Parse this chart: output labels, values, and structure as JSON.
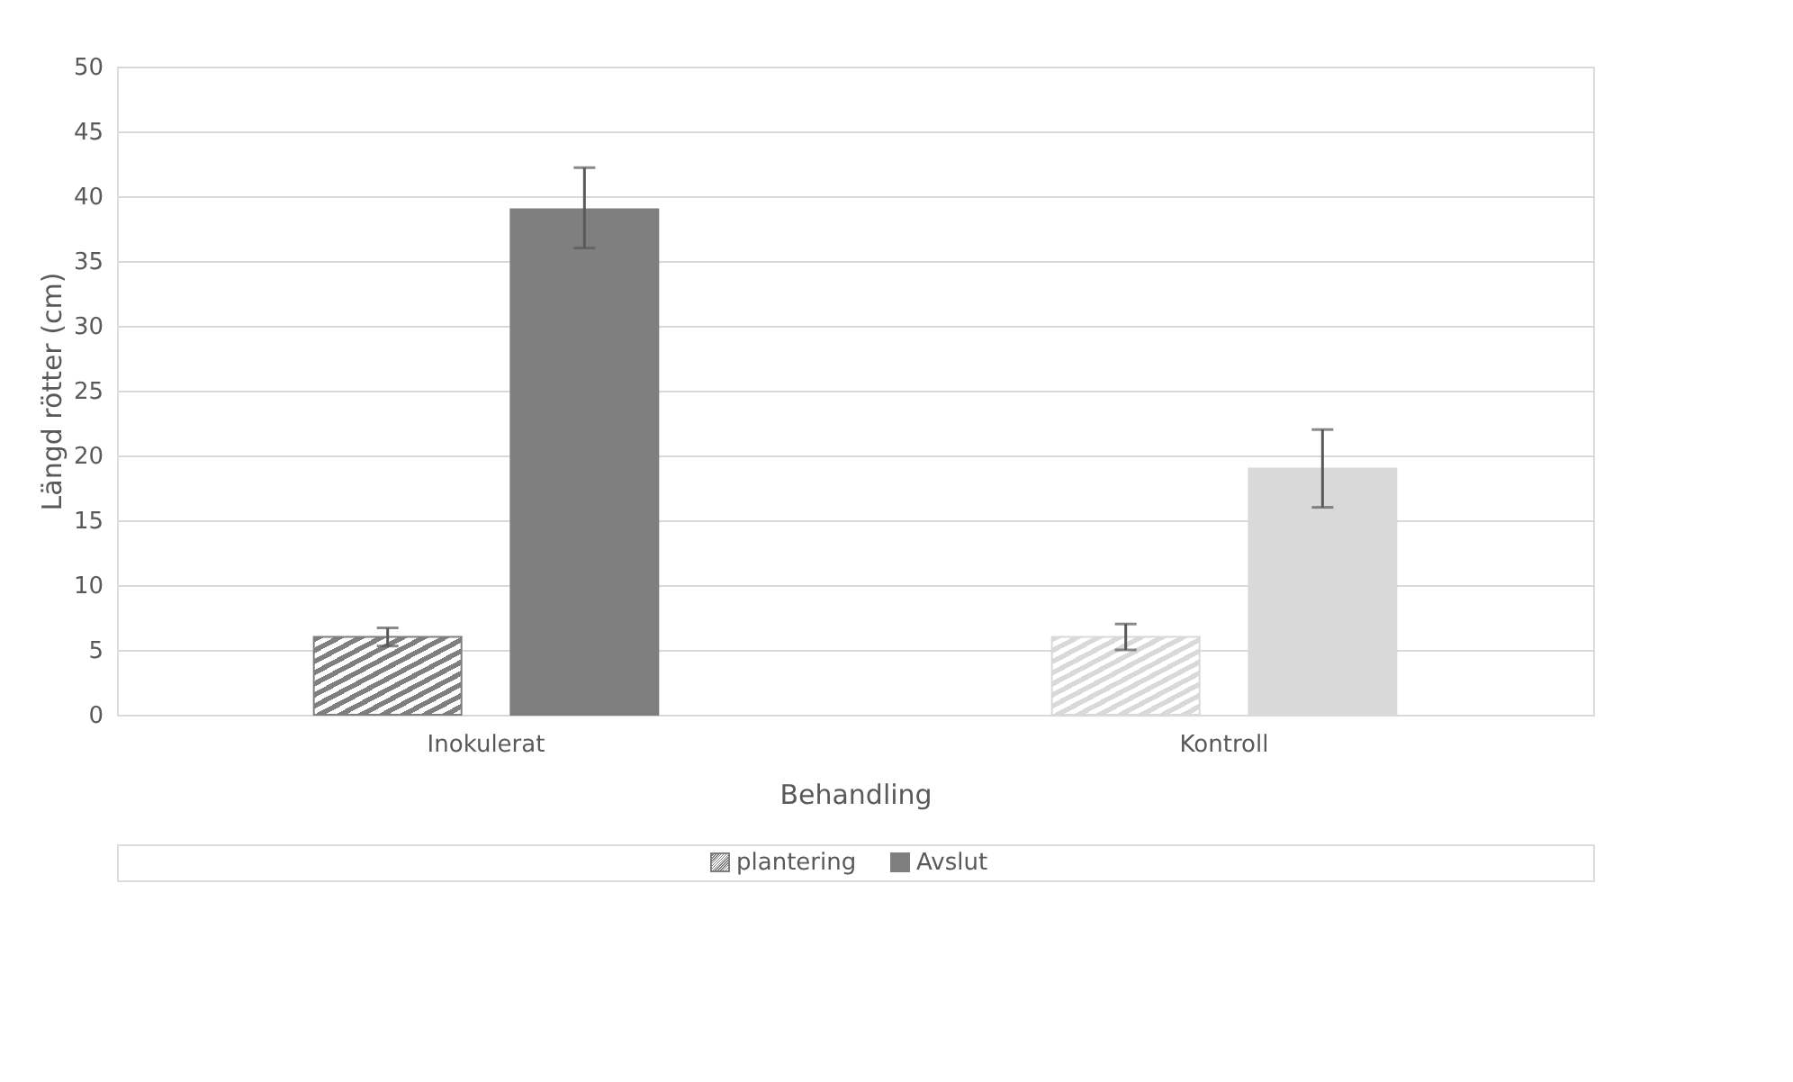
{
  "chart_data": {
    "type": "bar",
    "xlabel": "Behandling",
    "ylabel": "Längd rötter (cm)",
    "categories": [
      "Inokulerat",
      "Kontroll"
    ],
    "series": [
      {
        "name": "plantering",
        "colors": [
          "#7f7f7f",
          "#d9d9d9"
        ],
        "values": [
          6,
          6
        ],
        "errors": [
          0.7,
          1
        ]
      },
      {
        "name": "Avslut",
        "colors": [
          "#7f7f7f",
          "#d9d9d9"
        ],
        "values": [
          39,
          19
        ],
        "errors": [
          [
            36,
            42.2
          ],
          [
            16,
            22
          ]
        ]
      }
    ],
    "ylim": [
      0,
      50
    ],
    "yticks": [
      0,
      5,
      10,
      15,
      20,
      25,
      30,
      35,
      40,
      45,
      50
    ],
    "grid": "y",
    "legend": "bottom"
  }
}
